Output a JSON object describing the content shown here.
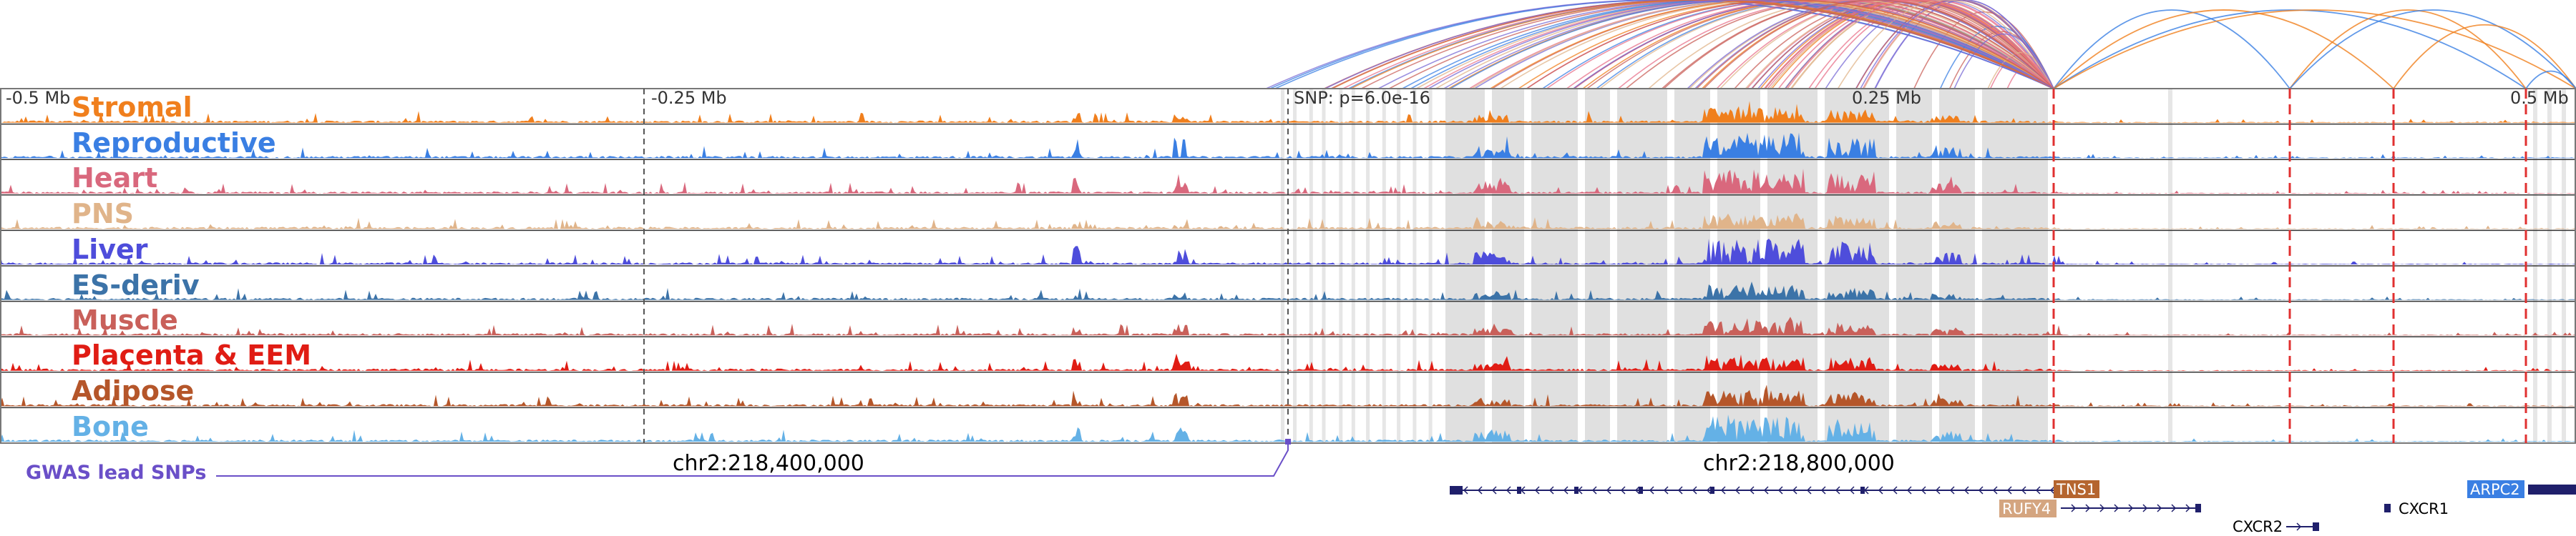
{
  "scale_labels": {
    "left": "-0.5 Mb",
    "mid_left": "-0.25 Mb",
    "snp": "SNP: p=6.0e-16",
    "mid_right": "0.25 Mb",
    "right": "0.5 Mb"
  },
  "tracks": [
    {
      "label": "Stromal",
      "color": "#f07f1d"
    },
    {
      "label": "Reproductive",
      "color": "#3a7fe3"
    },
    {
      "label": "Heart",
      "color": "#d9687d"
    },
    {
      "label": "PNS",
      "color": "#e0b48a"
    },
    {
      "label": "Liver",
      "color": "#4e4ddb"
    },
    {
      "label": "ES-deriv",
      "color": "#3c73a8"
    },
    {
      "label": "Muscle",
      "color": "#c9605a"
    },
    {
      "label": "Placenta & EEM",
      "color": "#e01c14"
    },
    {
      "label": "Adipose",
      "color": "#b5562a"
    },
    {
      "label": "Bone",
      "color": "#64b1e6"
    }
  ],
  "coordinates": {
    "left": "chr2:218,400,000",
    "right": "chr2:218,800,000"
  },
  "gwas": {
    "label": "GWAS lead SNPs",
    "color": "#6a4fc8"
  },
  "genes": [
    {
      "name": "TNS1",
      "style": "box",
      "color": "#b5652f"
    },
    {
      "name": "RUFY4",
      "style": "box",
      "color": "#d4a580"
    },
    {
      "name": "CXCR2",
      "style": "text",
      "color": "#000000"
    },
    {
      "name": "CXCR1",
      "style": "text",
      "color": "#000000"
    },
    {
      "name": "ARPC2",
      "style": "box",
      "color": "#3a7fe3"
    }
  ],
  "colors": {
    "highlight": "#e0e0e0",
    "snp_line": "#e03030",
    "track_border": "#333333",
    "gene_model": "#1f1f6b"
  }
}
